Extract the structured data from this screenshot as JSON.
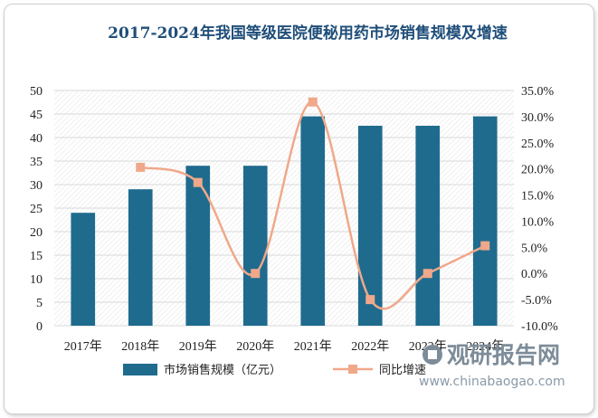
{
  "title": "2017-2024年我国等级医院便秘用药市场销售规模及增速",
  "watermark": {
    "brand": "观研报告网",
    "site": "www.chinabaogao.com"
  },
  "colors": {
    "bar": "#1f6b8e",
    "line": "#f0a88a",
    "marker": "#f0a88a",
    "title": "#1f4e79"
  },
  "chart_data": {
    "type": "bar",
    "categories": [
      "2017年",
      "2018年",
      "2019年",
      "2020年",
      "2021年",
      "2022年",
      "2023年",
      "2024年"
    ],
    "series": [
      {
        "name": "市场销售规模（亿元）",
        "type": "bar",
        "axis": "left",
        "values": [
          24,
          29,
          34,
          34,
          44.5,
          42.5,
          42.5,
          44.5
        ]
      },
      {
        "name": "同比增速",
        "type": "line",
        "axis": "right",
        "values": [
          null,
          20.3,
          17.4,
          0.0,
          32.8,
          -5.0,
          0.0,
          5.3
        ]
      }
    ],
    "y_left": {
      "ylim": [
        0,
        50
      ],
      "ticks": [
        "0",
        "5",
        "10",
        "15",
        "20",
        "25",
        "30",
        "35",
        "40",
        "45",
        "50"
      ]
    },
    "y_right": {
      "ylim": [
        -10,
        35
      ],
      "ticks": [
        "-10.0%",
        "-5.0%",
        "0.0%",
        "5.0%",
        "10.0%",
        "15.0%",
        "20.0%",
        "25.0%",
        "30.0%",
        "35.0%"
      ]
    },
    "grid": true,
    "legend_position": "bottom",
    "smooth_line": true
  }
}
